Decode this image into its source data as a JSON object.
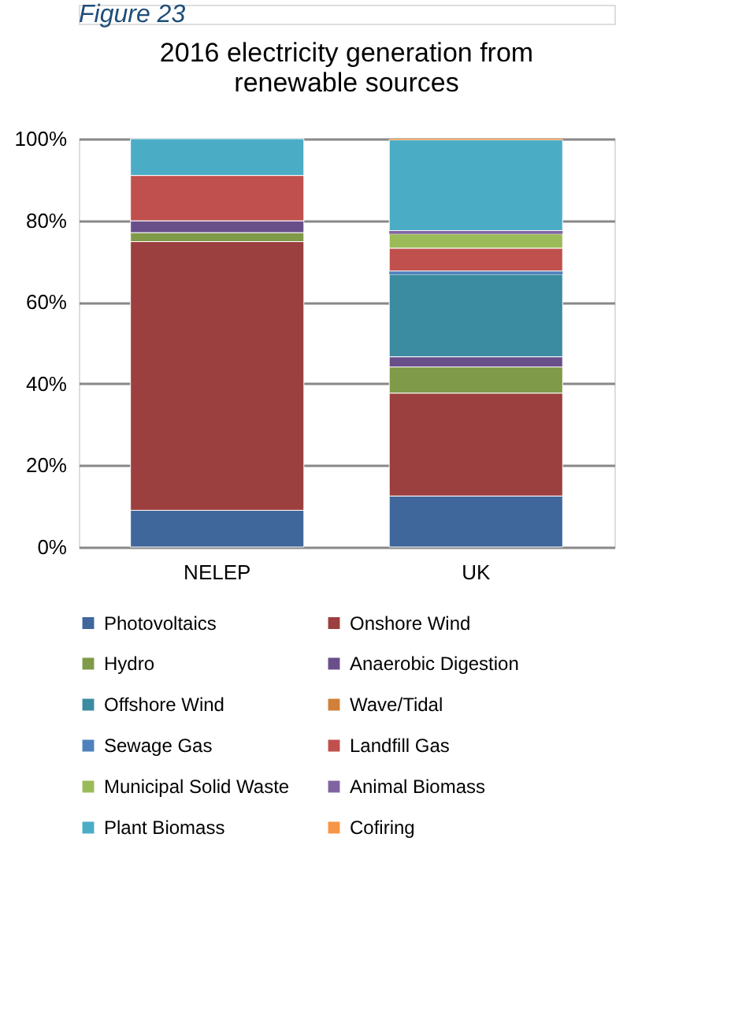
{
  "chart_data": {
    "type": "bar",
    "stacked": true,
    "title": "2016 electricity generation from renewable sources",
    "annotations": [
      "Figure 23"
    ],
    "categories": [
      "NELEP",
      "UK"
    ],
    "series": [
      {
        "name": "Photovoltaics",
        "color": "#3f679b",
        "values": [
          9.0,
          12.5
        ]
      },
      {
        "name": "Onshore Wind",
        "color": "#9b3f3f",
        "values": [
          65.8,
          25.2
        ]
      },
      {
        "name": "Hydro",
        "color": "#7f9a48",
        "values": [
          2.2,
          6.4
        ]
      },
      {
        "name": "Anaerobic Digestion",
        "color": "#694f8a",
        "values": [
          2.9,
          2.5
        ]
      },
      {
        "name": "Offshore Wind",
        "color": "#3b8ba1",
        "values": [
          0,
          20.2
        ]
      },
      {
        "name": "Wave/Tidal",
        "color": "#d1803a",
        "values": [
          0,
          0
        ]
      },
      {
        "name": "Sewage Gas",
        "color": "#4f81bd",
        "values": [
          0,
          0.8
        ]
      },
      {
        "name": "Landfill Gas",
        "color": "#c0504d",
        "values": [
          11.1,
          5.6
        ]
      },
      {
        "name": "Municipal Solid Waste",
        "color": "#9bbb59",
        "values": [
          0,
          3.5
        ]
      },
      {
        "name": "Animal Biomass",
        "color": "#8064a2",
        "values": [
          0,
          0.8
        ]
      },
      {
        "name": "Plant Biomass",
        "color": "#4bacc6",
        "values": [
          9.0,
          22.2
        ]
      },
      {
        "name": "Cofiring",
        "color": "#f79646",
        "values": [
          0,
          0.3
        ]
      }
    ],
    "ylim": [
      0,
      100
    ],
    "yticks": [
      {
        "value": 0,
        "label": "0%"
      },
      {
        "value": 20,
        "label": "20%"
      },
      {
        "value": 40,
        "label": "40%"
      },
      {
        "value": 60,
        "label": "60%"
      },
      {
        "value": 80,
        "label": "80%"
      },
      {
        "value": 100,
        "label": "100%"
      }
    ],
    "grid": "y",
    "legend": "bottom"
  }
}
